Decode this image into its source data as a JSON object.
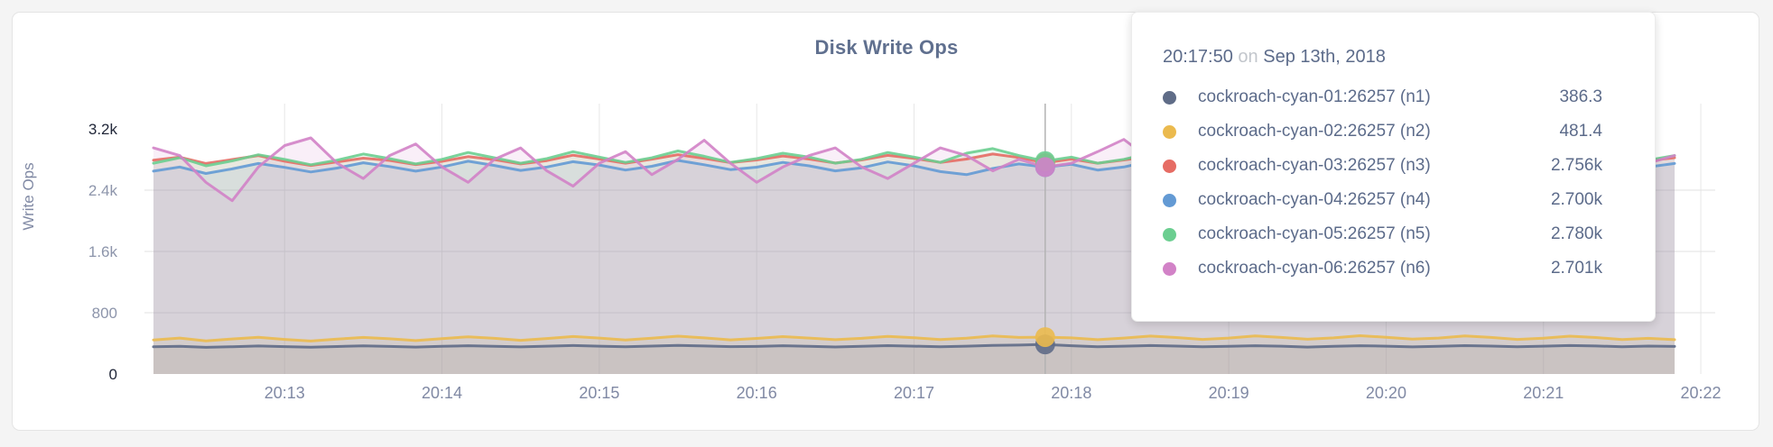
{
  "title": "Disk Write Ops",
  "chart_data": {
    "type": "line",
    "title": "Disk Write Ops",
    "xlabel": "",
    "ylabel": "Write Ops",
    "ylim": [
      0,
      3200
    ],
    "grid": true,
    "legend_position": "tooltip",
    "y_ticks": [
      {
        "label": "3.2k",
        "value": 3200,
        "gridline": false
      },
      {
        "label": "2.4k",
        "value": 2400,
        "gridline": true
      },
      {
        "label": "1.6k",
        "value": 1600,
        "gridline": true
      },
      {
        "label": "800",
        "value": 800,
        "gridline": true
      },
      {
        "label": "0",
        "value": 0,
        "gridline": false
      }
    ],
    "x_ticks": [
      "20:13",
      "20:14",
      "20:15",
      "20:16",
      "20:17",
      "20:18",
      "20:19",
      "20:20",
      "20:21",
      "20:22"
    ],
    "x_start_time": "20:12:10",
    "x_end_time": "20:21:50",
    "sample_interval_seconds": 10,
    "hover_index": 34,
    "series": [
      {
        "name": "cockroach-cyan-01:26257 (n1)",
        "node": "n1",
        "color": "#5f6c87",
        "values": [
          355,
          362,
          348,
          357,
          366,
          358,
          350,
          359,
          368,
          360,
          352,
          361,
          370,
          362,
          354,
          363,
          372,
          364,
          356,
          365,
          374,
          366,
          358,
          360,
          369,
          361,
          353,
          362,
          371,
          363,
          355,
          364,
          373,
          378,
          386.3,
          369,
          357,
          364,
          372,
          365,
          355,
          362,
          370,
          363,
          352,
          361,
          369,
          364,
          354,
          362,
          371,
          365,
          356,
          364,
          372,
          366,
          357,
          365,
          360
        ]
      },
      {
        "name": "cockroach-cyan-02:26257 (n2)",
        "node": "n2",
        "color": "#ebba4e",
        "values": [
          445,
          470,
          432,
          458,
          480,
          452,
          430,
          455,
          478,
          460,
          436,
          462,
          486,
          466,
          440,
          464,
          490,
          470,
          444,
          468,
          494,
          472,
          446,
          465,
          488,
          470,
          448,
          466,
          492,
          474,
          450,
          468,
          496,
          478,
          481.4,
          472,
          448,
          470,
          495,
          476,
          452,
          470,
          498,
          478,
          454,
          472,
          500,
          480,
          456,
          470,
          497,
          478,
          452,
          468,
          494,
          476,
          450,
          466,
          448
        ]
      },
      {
        "name": "cockroach-cyan-03:26257 (n3)",
        "node": "n3",
        "color": "#e66c64",
        "values": [
          2790,
          2830,
          2748,
          2800,
          2852,
          2778,
          2722,
          2768,
          2818,
          2788,
          2734,
          2776,
          2838,
          2798,
          2742,
          2786,
          2856,
          2806,
          2752,
          2804,
          2864,
          2814,
          2760,
          2794,
          2846,
          2806,
          2754,
          2794,
          2854,
          2814,
          2762,
          2806,
          2872,
          2826,
          2756,
          2806,
          2752,
          2794,
          2846,
          2794,
          2740,
          2784,
          2836,
          2782,
          2730,
          2774,
          2826,
          2784,
          2732,
          2764,
          2816,
          2774,
          2722,
          2764,
          2834,
          2794,
          2742,
          2784,
          2824
        ]
      },
      {
        "name": "cockroach-cyan-04:26257 (n4)",
        "node": "n4",
        "color": "#639ad4",
        "values": [
          2648,
          2702,
          2618,
          2678,
          2748,
          2698,
          2638,
          2688,
          2758,
          2708,
          2648,
          2702,
          2778,
          2722,
          2658,
          2702,
          2772,
          2728,
          2662,
          2712,
          2788,
          2732,
          2668,
          2700,
          2762,
          2718,
          2652,
          2692,
          2768,
          2718,
          2642,
          2602,
          2682,
          2742,
          2700,
          2738,
          2662,
          2702,
          2778,
          2722,
          2652,
          2692,
          2762,
          2702,
          2628,
          2678,
          2748,
          2700,
          2638,
          2682,
          2752,
          2712,
          2642,
          2688,
          2768,
          2722,
          2658,
          2702,
          2748
        ]
      },
      {
        "name": "cockroach-cyan-05:26257 (n5)",
        "node": "n5",
        "color": "#6bce90",
        "values": [
          2752,
          2824,
          2718,
          2782,
          2862,
          2802,
          2732,
          2792,
          2872,
          2812,
          2742,
          2802,
          2892,
          2822,
          2752,
          2812,
          2902,
          2832,
          2762,
          2822,
          2912,
          2842,
          2762,
          2812,
          2882,
          2832,
          2752,
          2802,
          2892,
          2832,
          2762,
          2882,
          2942,
          2852,
          2780,
          2832,
          2752,
          2802,
          2882,
          2822,
          2752,
          2802,
          2872,
          2812,
          2742,
          2792,
          2862,
          2802,
          2732,
          2782,
          2852,
          2802,
          2732,
          2782,
          2862,
          2812,
          2742,
          2792,
          2852
        ]
      },
      {
        "name": "cockroach-cyan-06:26257 (n6)",
        "node": "n6",
        "color": "#d282c7",
        "values": [
          2952,
          2852,
          2502,
          2262,
          2702,
          2982,
          3082,
          2752,
          2552,
          2852,
          3002,
          2702,
          2502,
          2802,
          2952,
          2652,
          2452,
          2752,
          2902,
          2602,
          2802,
          3052,
          2752,
          2502,
          2702,
          2852,
          2952,
          2702,
          2552,
          2752,
          2952,
          2852,
          2652,
          2802,
          2701,
          2752,
          2902,
          3062,
          2802,
          2602,
          2752,
          2852,
          2702,
          2502,
          2702,
          2902,
          2752,
          2602,
          2802,
          2952,
          2702,
          2452,
          2652,
          2852,
          2952,
          2752,
          2602,
          2752,
          2852
        ]
      }
    ]
  },
  "tooltip": {
    "time": "20:17:50",
    "conjunction": "on",
    "date": "Sep 13th, 2018",
    "rows": [
      {
        "name": "cockroach-cyan-01:26257 (n1)",
        "value": "386.3",
        "color": "#5f6c87"
      },
      {
        "name": "cockroach-cyan-02:26257 (n2)",
        "value": "481.4",
        "color": "#ebba4e"
      },
      {
        "name": "cockroach-cyan-03:26257 (n3)",
        "value": "2.756k",
        "color": "#e66c64"
      },
      {
        "name": "cockroach-cyan-04:26257 (n4)",
        "value": "2.700k",
        "color": "#639ad4"
      },
      {
        "name": "cockroach-cyan-05:26257 (n5)",
        "value": "2.780k",
        "color": "#6bce90"
      },
      {
        "name": "cockroach-cyan-06:26257 (n6)",
        "value": "2.701k",
        "color": "#d282c7"
      }
    ]
  }
}
